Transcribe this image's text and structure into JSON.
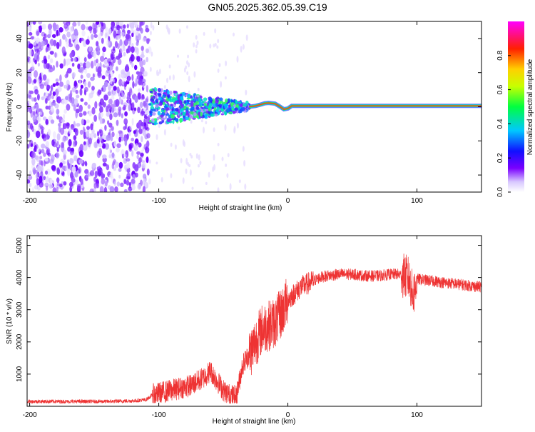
{
  "title": "GN05.2025.362.05.39.C19",
  "chart_data": [
    {
      "type": "heatmap",
      "xlabel": "Height of straight line (km)",
      "ylabel": "Frequency (Hz)",
      "xlim": [
        -202,
        150
      ],
      "ylim": [
        -50,
        50
      ],
      "xticks": [
        -200,
        -100,
        0,
        100
      ],
      "xtick_labels": [
        "-200",
        "-100",
        "0",
        "100"
      ],
      "yticks": [
        -40,
        -20,
        0,
        20,
        40
      ],
      "ytick_labels": [
        "-40",
        "-20",
        "0",
        "20",
        "40"
      ],
      "colorbar": {
        "label": "Normalized spectral amplitude",
        "range": [
          0,
          1
        ],
        "ticks": [
          0,
          0.2,
          0.4,
          0.6,
          0.8
        ],
        "tick_labels": [
          "0.0",
          "0.2",
          "0.4",
          "0.6",
          "0.8"
        ]
      },
      "regions": [
        {
          "name": "noise",
          "x_range": [
            -202,
            -107
          ],
          "freq_range": [
            -50,
            50
          ],
          "amplitude": 0.15
        },
        {
          "name": "transition",
          "x_range": [
            -107,
            -30
          ],
          "freq_range": [
            -10,
            10
          ],
          "amplitude": 0.3
        },
        {
          "name": "carrier",
          "x_range": [
            -25,
            150
          ],
          "freq": 0.5,
          "amplitude": 1.0
        }
      ],
      "carrier_track": {
        "x": [
          -30,
          -25,
          -20,
          -18,
          -15,
          -12,
          -10,
          -7,
          -3,
          0,
          3,
          150
        ],
        "freq": [
          0,
          0.5,
          1.5,
          2,
          2.2,
          2,
          1.8,
          0.5,
          -1.5,
          -1,
          0.5,
          0.5
        ]
      }
    },
    {
      "type": "line",
      "xlabel": "Height of straight line (km)",
      "ylabel": "SNR (10 * v/v)",
      "xlim": [
        -202,
        150
      ],
      "ylim": [
        0,
        5300
      ],
      "xticks": [
        -200,
        -100,
        0,
        100
      ],
      "xtick_labels": [
        "-200",
        "-100",
        "0",
        "100"
      ],
      "yticks": [
        1000,
        2000,
        3000,
        4000,
        5000
      ],
      "ytick_labels": [
        "1000",
        "2000",
        "3000",
        "4000",
        "5000"
      ],
      "color": "#ee3333",
      "series": [
        {
          "name": "SNR",
          "x": [
            -202,
            -180,
            -160,
            -140,
            -120,
            -110,
            -105,
            -95,
            -85,
            -75,
            -65,
            -60,
            -55,
            -50,
            -45,
            -40,
            -35,
            -30,
            -25,
            -20,
            -15,
            -10,
            -5,
            0,
            5,
            10,
            15,
            20,
            25,
            30,
            40,
            50,
            60,
            70,
            80,
            85,
            90,
            93,
            95,
            97,
            100,
            110,
            120,
            130,
            140,
            150
          ],
          "y": [
            150,
            150,
            150,
            150,
            170,
            200,
            350,
            450,
            550,
            650,
            900,
            1100,
            800,
            500,
            350,
            300,
            1300,
            1600,
            2000,
            2400,
            2500,
            2600,
            2900,
            3300,
            3500,
            3700,
            3800,
            3900,
            4000,
            4050,
            4100,
            4100,
            4050,
            4050,
            4100,
            4100,
            4050,
            4000,
            3800,
            3400,
            3950,
            3900,
            3850,
            3800,
            3750,
            3700
          ]
        }
      ]
    }
  ]
}
